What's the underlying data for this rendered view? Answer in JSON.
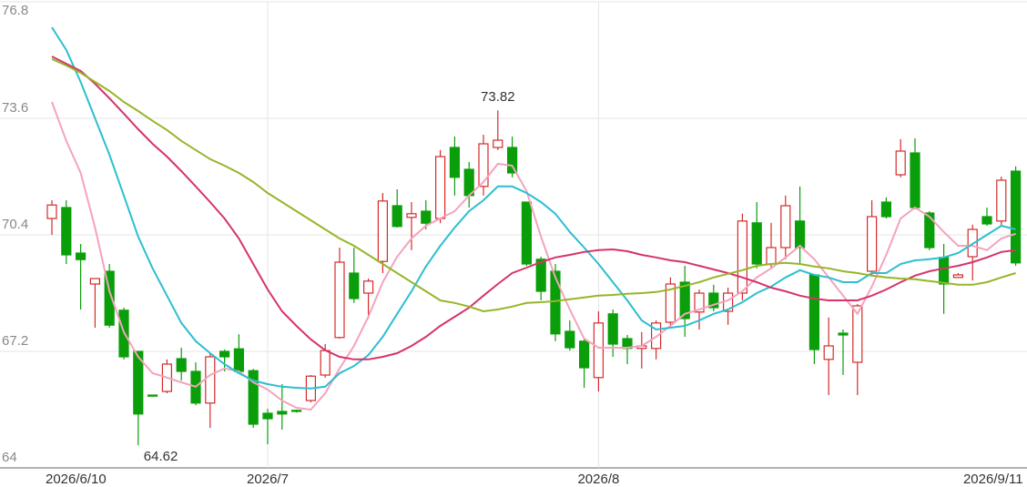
{
  "chart_data": {
    "type": "candlestick",
    "categories": [
      "2026/6/10",
      null,
      null,
      null,
      null,
      null,
      null,
      null,
      null,
      null,
      null,
      null,
      null,
      null,
      null,
      "2026/7",
      null,
      null,
      null,
      null,
      null,
      null,
      null,
      null,
      null,
      null,
      null,
      null,
      null,
      null,
      null,
      null,
      null,
      null,
      null,
      null,
      null,
      null,
      "2026/8",
      null,
      null,
      null,
      null,
      null,
      null,
      null,
      null,
      null,
      null,
      null,
      null,
      null,
      null,
      null,
      null,
      null,
      null,
      null,
      null,
      null,
      null,
      null,
      null,
      null,
      null,
      null,
      null,
      "2026/9/11"
    ],
    "open": [
      70.85,
      71.15,
      69.9,
      69.05,
      69.4,
      68.33,
      67.2,
      66.0,
      66.1,
      67.0,
      66.65,
      65.78,
      67.2,
      67.27,
      66.67,
      65.5,
      65.55,
      65.58,
      65.85,
      66.55,
      67.58,
      69.35,
      68.8,
      69.67,
      71.2,
      70.88,
      71.05,
      70.85,
      72.8,
      72.2,
      71.73,
      72.8,
      72.8,
      71.3,
      69.73,
      69.4,
      67.75,
      67.48,
      66.48,
      68.23,
      67.55,
      67.28,
      67.28,
      68.0,
      69.1,
      68.28,
      68.8,
      68.3,
      68.8,
      70.73,
      69.6,
      70.05,
      70.78,
      69.3,
      66.98,
      67.7,
      66.9,
      69.4,
      71.3,
      72.05,
      72.65,
      71.0,
      69.78,
      69.23,
      69.8,
      70.9,
      70.78,
      72.15
    ],
    "high": [
      71.35,
      71.35,
      70.15,
      69.2,
      69.6,
      68.4,
      67.2,
      66.0,
      66.98,
      67.3,
      66.9,
      67.15,
      67.25,
      67.67,
      66.72,
      65.62,
      66.3,
      65.6,
      66.55,
      67.4,
      70.05,
      70.05,
      69.2,
      71.55,
      71.65,
      71.3,
      71.35,
      72.73,
      73.1,
      72.4,
      73.15,
      73.82,
      73.1,
      71.3,
      69.8,
      69.6,
      68.05,
      67.55,
      68.3,
      68.35,
      67.65,
      67.73,
      68.05,
      69.23,
      69.55,
      68.9,
      69.03,
      68.95,
      70.98,
      71.3,
      70.73,
      71.48,
      71.73,
      69.3,
      68.13,
      67.8,
      68.5,
      71.35,
      71.43,
      73.03,
      73.05,
      71.05,
      70.15,
      69.35,
      70.68,
      71.15,
      72.0,
      72.28
    ],
    "low": [
      70.4,
      69.6,
      68.35,
      67.85,
      67.85,
      66.98,
      64.62,
      65.97,
      66.05,
      66.4,
      65.72,
      65.1,
      66.65,
      66.6,
      65.1,
      64.65,
      65.05,
      65.52,
      65.8,
      66.48,
      67.55,
      68.53,
      68.1,
      69.35,
      70.6,
      69.98,
      70.55,
      70.72,
      71.48,
      71.15,
      71.48,
      72.73,
      71.98,
      69.55,
      68.6,
      67.48,
      67.22,
      66.2,
      66.1,
      67.05,
      66.85,
      66.73,
      66.98,
      67.9,
      67.6,
      67.8,
      68.3,
      67.93,
      68.6,
      69.48,
      69.48,
      69.73,
      69.6,
      66.85,
      66.0,
      66.55,
      66.0,
      69.3,
      70.85,
      71.98,
      71.1,
      69.98,
      68.23,
      69.22,
      69.15,
      70.65,
      70.65,
      69.55
    ],
    "close": [
      71.22,
      69.85,
      69.72,
      69.2,
      67.92,
      67.05,
      65.48,
      65.97,
      66.85,
      66.65,
      65.78,
      67.05,
      67.05,
      66.65,
      65.2,
      65.35,
      65.48,
      65.55,
      66.52,
      67.22,
      69.65,
      68.65,
      69.13,
      71.33,
      70.63,
      70.98,
      70.72,
      72.55,
      71.98,
      71.48,
      72.9,
      73.0,
      72.1,
      69.6,
      68.85,
      67.68,
      67.3,
      66.75,
      67.98,
      67.4,
      67.28,
      67.35,
      67.98,
      69.05,
      68.1,
      68.8,
      68.4,
      68.8,
      70.78,
      69.6,
      70.05,
      71.2,
      70.05,
      67.25,
      67.35,
      67.65,
      68.45,
      70.9,
      70.9,
      72.7,
      71.15,
      70.05,
      69.05,
      69.3,
      70.55,
      70.7,
      71.9,
      69.63
    ],
    "up_color": "#d42a2a",
    "down_color": "#0a9e0a",
    "series": [
      {
        "color": "#f4a3bd",
        "values": [
          74.05,
          72.98,
          72.1,
          70.6,
          68.85,
          67.73,
          67.05,
          66.6,
          66.48,
          66.35,
          66.23,
          66.55,
          66.73,
          66.65,
          66.35,
          66.15,
          65.85,
          65.65,
          65.6,
          66.05,
          66.73,
          67.35,
          68.15,
          69.1,
          69.8,
          70.3,
          70.65,
          70.85,
          71.05,
          71.48,
          71.85,
          72.35,
          72.3,
          71.6,
          70.35,
          69.23,
          68.35,
          67.55,
          67.3,
          67.3,
          67.3,
          67.35,
          67.6,
          67.9,
          68.23,
          68.35,
          68.48,
          68.6,
          68.85,
          69.23,
          69.48,
          69.78,
          70.1,
          69.73,
          69.23,
          68.73,
          68.23,
          68.98,
          69.85,
          70.85,
          71.15,
          70.9,
          70.48,
          70.1,
          70.1,
          69.98,
          70.3,
          70.43
        ]
      },
      {
        "color": "#2bbfd0",
        "values": [
          76.1,
          75.48,
          74.6,
          73.6,
          72.6,
          71.48,
          70.35,
          69.48,
          68.73,
          67.98,
          67.48,
          67.15,
          66.85,
          66.6,
          66.4,
          66.3,
          66.23,
          66.2,
          66.18,
          66.23,
          66.6,
          66.8,
          67.1,
          67.6,
          68.23,
          68.85,
          69.53,
          70.1,
          70.6,
          71.05,
          71.35,
          71.73,
          71.73,
          71.55,
          71.3,
          70.98,
          70.48,
          70.05,
          69.6,
          69.1,
          68.6,
          68.05,
          67.8,
          67.85,
          67.9,
          68.05,
          68.23,
          68.35,
          68.55,
          68.8,
          68.98,
          69.23,
          69.43,
          69.3,
          69.23,
          69.1,
          69.1,
          69.35,
          69.35,
          69.6,
          69.7,
          69.73,
          69.78,
          69.9,
          70.15,
          70.4,
          70.65,
          70.55
        ]
      },
      {
        "color": "#d6336c",
        "values": [
          75.3,
          75.1,
          74.9,
          74.55,
          74.15,
          73.73,
          73.3,
          72.9,
          72.55,
          72.15,
          71.73,
          71.3,
          70.85,
          70.3,
          69.6,
          68.9,
          68.3,
          67.9,
          67.53,
          67.23,
          67.05,
          66.98,
          66.98,
          67.05,
          67.15,
          67.35,
          67.6,
          67.9,
          68.15,
          68.4,
          68.73,
          69.05,
          69.35,
          69.5,
          69.65,
          69.78,
          69.85,
          69.93,
          69.98,
          70.0,
          69.95,
          69.85,
          69.78,
          69.7,
          69.65,
          69.55,
          69.45,
          69.35,
          69.23,
          69.1,
          68.95,
          68.85,
          68.73,
          68.65,
          68.6,
          68.6,
          68.6,
          68.73,
          68.9,
          69.1,
          69.28,
          69.4,
          69.48,
          69.55,
          69.65,
          69.78,
          69.93,
          69.98
        ]
      },
      {
        "color": "#95b62a",
        "values": [
          75.23,
          75.05,
          74.85,
          74.6,
          74.35,
          74.05,
          73.8,
          73.53,
          73.28,
          72.98,
          72.73,
          72.48,
          72.3,
          72.1,
          71.85,
          71.55,
          71.3,
          71.05,
          70.8,
          70.55,
          70.3,
          70.1,
          69.85,
          69.6,
          69.35,
          69.1,
          68.85,
          68.6,
          68.53,
          68.43,
          68.3,
          68.35,
          68.43,
          68.53,
          68.55,
          68.58,
          68.63,
          68.68,
          68.73,
          68.75,
          68.78,
          68.8,
          68.83,
          68.9,
          69.0,
          69.1,
          69.23,
          69.33,
          69.43,
          69.55,
          69.6,
          69.63,
          69.6,
          69.53,
          69.48,
          69.4,
          69.35,
          69.28,
          69.23,
          69.2,
          69.18,
          69.13,
          69.08,
          69.03,
          69.03,
          69.1,
          69.23,
          69.35
        ]
      }
    ],
    "annotations": [
      73.82,
      64.62
    ],
    "ylim": [
      64,
      76.8
    ],
    "yticks": [
      64,
      67.2,
      70.4,
      73.6,
      76.8
    ],
    "grid": true
  }
}
